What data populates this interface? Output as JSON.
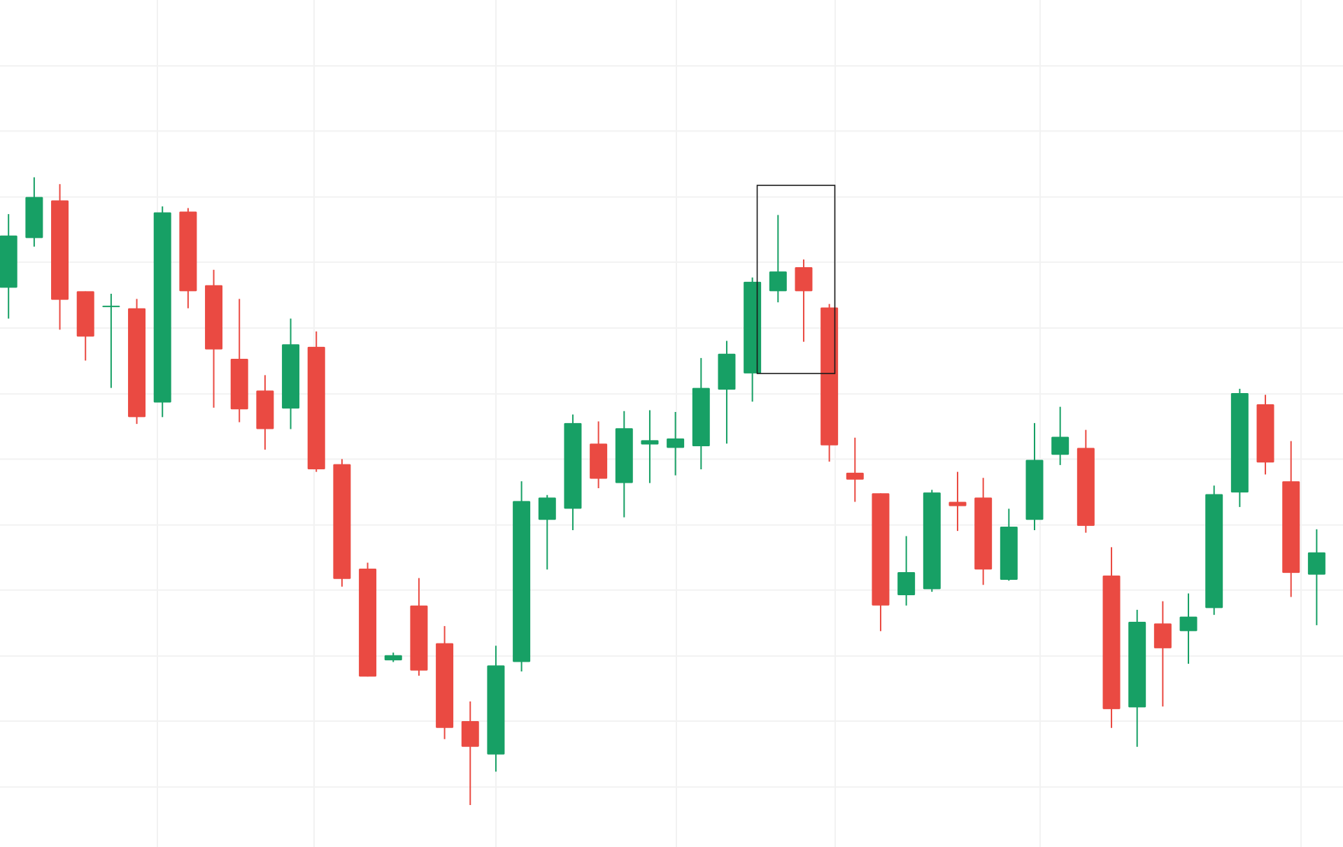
{
  "chart_data": {
    "type": "candlestick",
    "up_color": "#17a065",
    "down_color": "#ea4a42",
    "grid": true,
    "ylim": [
      0,
      989
    ],
    "yticks": [
      70,
      147,
      223,
      300,
      376,
      453,
      529,
      606,
      683,
      759,
      836,
      912
    ],
    "open": [
      653,
      711,
      755,
      649,
      632,
      629,
      519,
      742,
      656,
      570,
      533,
      512,
      584,
      447,
      325,
      218,
      282,
      238,
      147,
      108,
      216,
      382,
      395,
      471,
      425,
      470,
      466,
      468,
      534,
      553,
      649,
      677,
      630,
      437,
      413,
      294,
      301,
      403,
      408,
      312,
      382,
      458,
      466,
      317,
      163,
      261,
      252,
      279,
      414,
      517,
      427,
      318
    ],
    "high": [
      739,
      782,
      774,
      649,
      646,
      640,
      748,
      746,
      674,
      640,
      551,
      617,
      602,
      453,
      332,
      227,
      314,
      258,
      170,
      235,
      427,
      411,
      505,
      497,
      509,
      510,
      508,
      571,
      591,
      665,
      738,
      686,
      634,
      478,
      413,
      363,
      417,
      438,
      431,
      395,
      495,
      514,
      487,
      350,
      277,
      287,
      296,
      422,
      535,
      528,
      474,
      371
    ],
    "low": [
      617,
      701,
      604,
      568,
      536,
      494,
      502,
      629,
      513,
      496,
      464,
      488,
      438,
      304,
      199,
      216,
      200,
      126,
      49,
      88,
      205,
      324,
      370,
      419,
      385,
      425,
      434,
      441,
      471,
      520,
      636,
      590,
      450,
      403,
      252,
      282,
      298,
      369,
      306,
      311,
      370,
      446,
      367,
      139,
      117,
      164,
      214,
      271,
      397,
      435,
      292,
      259
    ],
    "close": [
      714,
      759,
      639,
      596,
      632,
      502,
      741,
      649,
      581,
      511,
      488,
      587,
      441,
      313,
      199,
      224,
      206,
      139,
      117,
      212,
      404,
      408,
      495,
      430,
      489,
      475,
      477,
      536,
      576,
      660,
      672,
      649,
      469,
      429,
      282,
      321,
      414,
      398,
      324,
      374,
      452,
      479,
      375,
      161,
      263,
      232,
      269,
      412,
      530,
      449,
      320,
      344
    ]
  }
}
